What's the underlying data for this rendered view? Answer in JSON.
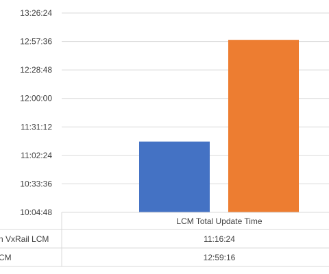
{
  "chart_data": {
    "type": "bar",
    "y_ticks": [
      "13:26:24",
      "12:57:36",
      "12:28:48",
      "12:00:00",
      "11:31:12",
      "11:02:24",
      "10:33:36",
      "10:04:48"
    ],
    "ylim": [
      "10:04:48",
      "13:26:24"
    ],
    "grid": true,
    "categories": [
      "LCM Total Update Time"
    ],
    "series": [
      {
        "name": "n VxRail LCM",
        "values": [
          "11:16:24"
        ],
        "color": "#4472C4"
      },
      {
        "name": "CM",
        "values": [
          "12:59:16"
        ],
        "color": "#ED7D31"
      }
    ]
  }
}
